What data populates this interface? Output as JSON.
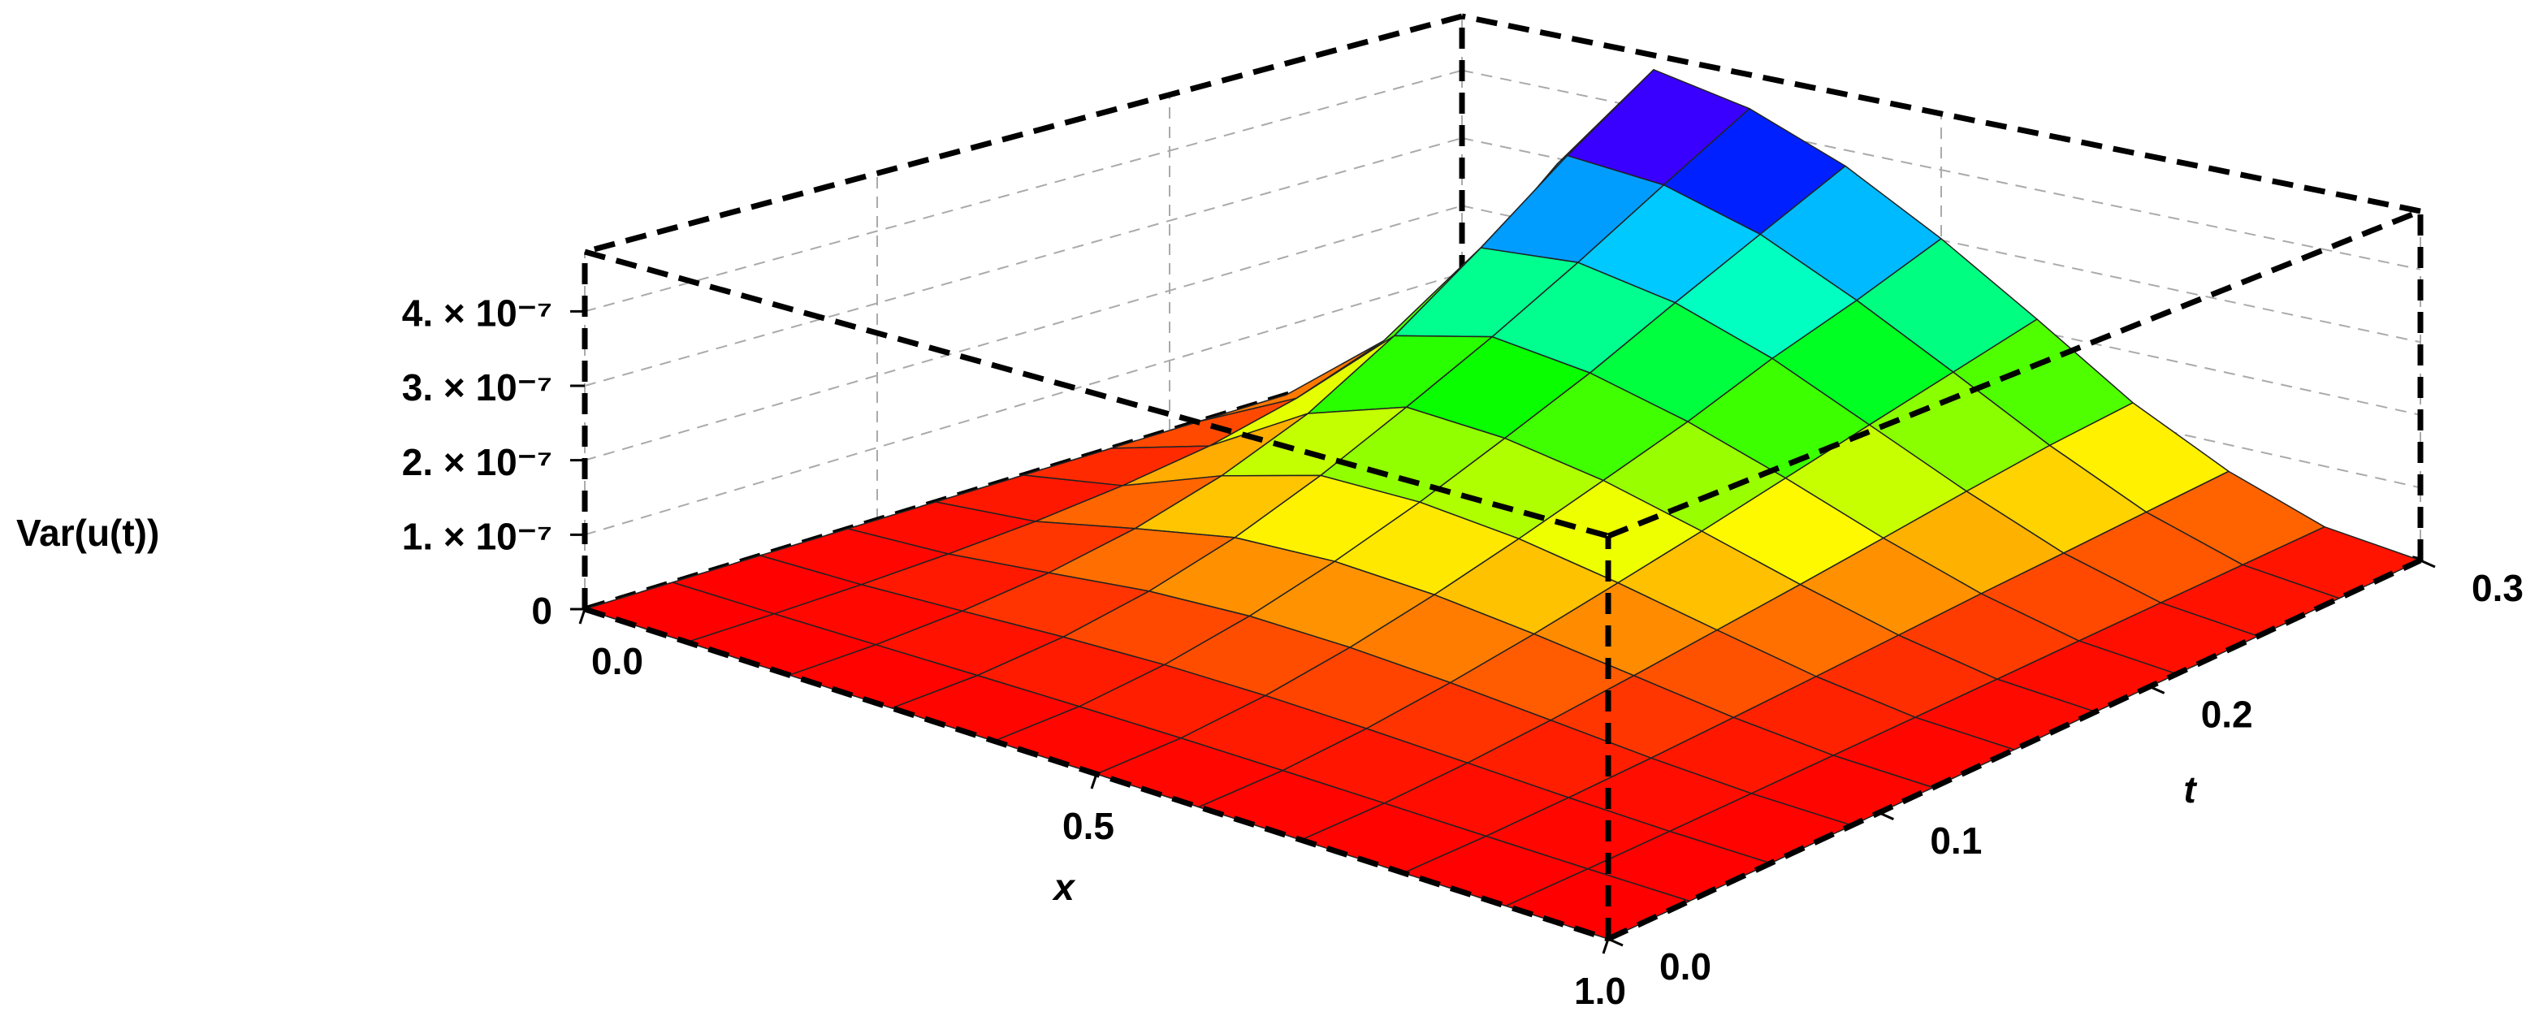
{
  "chart_data": {
    "type": "surface",
    "x_label": "x",
    "y_label": "t",
    "z_label": "Var(u(t))",
    "x": [
      0,
      0.1,
      0.2,
      0.3,
      0.4,
      0.5,
      0.6,
      0.7,
      0.8,
      0.9,
      1
    ],
    "y": [
      0,
      0.03,
      0.06,
      0.09,
      0.12,
      0.15,
      0.18,
      0.21,
      0.24,
      0.27,
      0.3
    ],
    "z": [
      [
        0,
        0,
        0,
        0,
        0,
        0,
        0,
        0,
        0,
        0,
        0
      ],
      [
        0,
        5e-10,
        1.8e-09,
        3.3e-09,
        4.3e-09,
        4.6e-09,
        3.9e-09,
        2.8e-09,
        1.4e-09,
        4e-10,
        0
      ],
      [
        0,
        2.3e-09,
        8.1e-09,
        1.44e-08,
        1.81e-08,
        1.78e-08,
        1.48e-08,
        1.01e-08,
        5.1e-09,
        1.4e-09,
        0
      ],
      [
        0,
        6.1e-09,
        2.06e-08,
        3.55e-08,
        4.14e-08,
        3.87e-08,
        3.11e-08,
        2.07e-08,
        1.01e-08,
        2.8e-09,
        0
      ],
      [
        0,
        1.25e-08,
        4.17e-08,
        6.76e-08,
        7.32e-08,
        6.61e-08,
        5.15e-08,
        3.4e-08,
        1.66e-08,
        4.5e-09,
        0
      ],
      [
        0,
        2.36e-08,
        7.48e-08,
        1.12e-07,
        1.12e-07,
        9.86e-08,
        7.56e-08,
        4.89e-08,
        2.38e-08,
        6.3e-09,
        0
      ],
      [
        0,
        4.04e-08,
        1.22e-07,
        1.66e-07,
        1.58e-07,
        1.35e-07,
        1.01e-07,
        6.43e-08,
        3.16e-08,
        8.3e-09,
        0
      ],
      [
        0,
        6.9e-08,
        1.92e-07,
        2.24e-07,
        2.07e-07,
        1.73e-07,
        1.29e-07,
        8.11e-08,
        3.99e-08,
        1.04e-08,
        0
      ],
      [
        0,
        1.12e-07,
        2.78e-07,
        2.89e-07,
        2.64e-07,
        2.18e-07,
        1.58e-07,
        9.89e-08,
        4.71e-08,
        1.24e-08,
        0
      ],
      [
        0,
        1.82e-07,
        3.72e-07,
        3.6e-07,
        3.2e-07,
        2.57e-07,
        1.87e-07,
        1.16e-07,
        5.51e-08,
        1.42e-08,
        0
      ],
      [
        0,
        2.93e-07,
        4.59e-07,
        4.31e-07,
        3.77e-07,
        3.02e-07,
        2.17e-07,
        1.29e-07,
        6.3e-08,
        1.61e-08,
        0
      ]
    ],
    "xlim": [
      0,
      1
    ],
    "ylim": [
      0,
      0.3
    ],
    "zlim": [
      0,
      4.8e-07
    ],
    "xticks": [
      {
        "value": 0,
        "label": "0.0"
      },
      0.5,
      {
        "value": 1,
        "label": "1.0"
      }
    ],
    "yticks": [
      {
        "value": 0,
        "label": "0.0"
      },
      0.1,
      0.2,
      0.3
    ],
    "zticks": [
      0,
      {
        "value": 1e-07,
        "label": "1. × 10⁻⁷"
      },
      {
        "value": 2e-07,
        "label": "2. × 10⁻⁷"
      },
      {
        "value": 3e-07,
        "label": "3. × 10⁻⁷"
      },
      {
        "value": 4e-07,
        "label": "4. × 10⁻⁷"
      }
    ],
    "colormap": "hue",
    "mesh": true,
    "grid": true,
    "box_style": "dashed"
  }
}
